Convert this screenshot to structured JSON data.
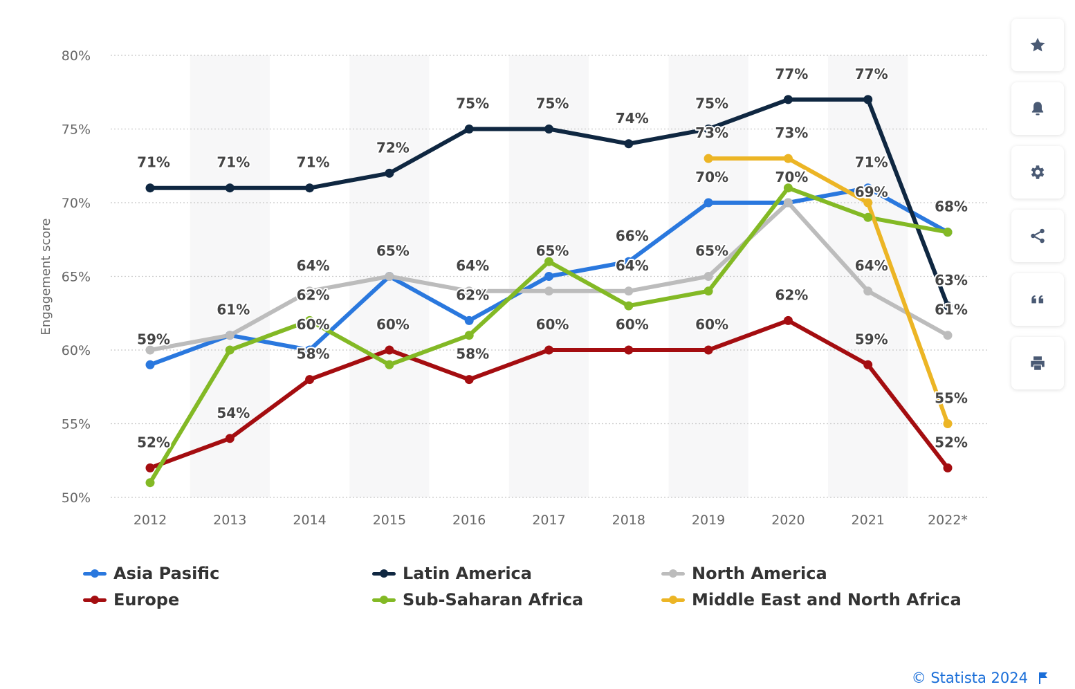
{
  "chart_data": {
    "type": "line",
    "title": "",
    "xlabel": "",
    "ylabel": "Engagement score",
    "categories": [
      "2012",
      "2013",
      "2014",
      "2015",
      "2016",
      "2017",
      "2018",
      "2019",
      "2020",
      "2021",
      "2022*"
    ],
    "ylim": [
      50,
      80
    ],
    "yticks": [
      50,
      55,
      60,
      65,
      70,
      75,
      80
    ],
    "ytick_labels": [
      "50%",
      "55%",
      "60%",
      "65%",
      "70%",
      "75%",
      "80%"
    ],
    "value_suffix": "%",
    "grid": true,
    "legend_position": "bottom",
    "series": [
      {
        "name": "Asia Pasific",
        "color": "#2a78de",
        "values": [
          59,
          61,
          60,
          65,
          62,
          65,
          66,
          70,
          70,
          71,
          68
        ]
      },
      {
        "name": "Latin America",
        "color": "#0f2741",
        "values": [
          71,
          71,
          71,
          72,
          75,
          75,
          74,
          75,
          77,
          77,
          63
        ]
      },
      {
        "name": "North America",
        "color": "#bcbcbc",
        "values": [
          60,
          61,
          64,
          65,
          64,
          64,
          64,
          65,
          70,
          64,
          61
        ]
      },
      {
        "name": "Europe",
        "color": "#a40d10",
        "values": [
          52,
          54,
          58,
          60,
          58,
          60,
          60,
          60,
          62,
          59,
          52
        ]
      },
      {
        "name": "Sub-Saharan Africa",
        "color": "#83b925",
        "values": [
          51,
          60,
          62,
          59,
          61,
          66,
          63,
          64,
          71,
          69,
          68
        ]
      },
      {
        "name": "Middle East and North Africa",
        "color": "#ecb525",
        "values": [
          null,
          null,
          null,
          null,
          null,
          null,
          null,
          73,
          73,
          70,
          55
        ]
      }
    ],
    "data_labels": [
      {
        "text": "71%",
        "x": "2012",
        "y": 71
      },
      {
        "text": "71%",
        "x": "2013",
        "y": 71
      },
      {
        "text": "71%",
        "x": "2014",
        "y": 71
      },
      {
        "text": "72%",
        "x": "2015",
        "y": 72
      },
      {
        "text": "75%",
        "x": "2016",
        "y": 75
      },
      {
        "text": "75%",
        "x": "2017",
        "y": 75
      },
      {
        "text": "74%",
        "x": "2018",
        "y": 74
      },
      {
        "text": "75%",
        "x": "2019",
        "y": 75
      },
      {
        "text": "77%",
        "x": "2020",
        "y": 77
      },
      {
        "text": "77%",
        "x": "2021",
        "y": 77
      },
      {
        "text": "73%",
        "x": "2019",
        "y": 73
      },
      {
        "text": "73%",
        "x": "2020",
        "y": 73
      },
      {
        "text": "71%",
        "x": "2021",
        "y": 71
      },
      {
        "text": "70%",
        "x": "2019",
        "y": 70
      },
      {
        "text": "70%",
        "x": "2020",
        "y": 70
      },
      {
        "text": "69%",
        "x": "2021",
        "y": 69
      },
      {
        "text": "68%",
        "x": "2022*",
        "y": 68
      },
      {
        "text": "66%",
        "x": "2018",
        "y": 66
      },
      {
        "text": "65%",
        "x": "2015",
        "y": 65
      },
      {
        "text": "65%",
        "x": "2017",
        "y": 65
      },
      {
        "text": "65%",
        "x": "2019",
        "y": 65
      },
      {
        "text": "64%",
        "x": "2014",
        "y": 64
      },
      {
        "text": "64%",
        "x": "2016",
        "y": 64
      },
      {
        "text": "64%",
        "x": "2018",
        "y": 64
      },
      {
        "text": "64%",
        "x": "2021",
        "y": 64
      },
      {
        "text": "63%",
        "x": "2022*",
        "y": 63
      },
      {
        "text": "62%",
        "x": "2014",
        "y": 62
      },
      {
        "text": "62%",
        "x": "2016",
        "y": 62
      },
      {
        "text": "62%",
        "x": "2020",
        "y": 62
      },
      {
        "text": "61%",
        "x": "2013",
        "y": 61
      },
      {
        "text": "61%",
        "x": "2022*",
        "y": 61
      },
      {
        "text": "60%",
        "x": "2014",
        "y": 60
      },
      {
        "text": "60%",
        "x": "2015",
        "y": 60
      },
      {
        "text": "60%",
        "x": "2017",
        "y": 60
      },
      {
        "text": "60%",
        "x": "2018",
        "y": 60
      },
      {
        "text": "60%",
        "x": "2019",
        "y": 60
      },
      {
        "text": "59%",
        "x": "2012",
        "y": 59
      },
      {
        "text": "59%",
        "x": "2021",
        "y": 59
      },
      {
        "text": "58%",
        "x": "2014",
        "y": 58
      },
      {
        "text": "58%",
        "x": "2016",
        "y": 58
      },
      {
        "text": "55%",
        "x": "2022*",
        "y": 55
      },
      {
        "text": "54%",
        "x": "2013",
        "y": 54
      },
      {
        "text": "52%",
        "x": "2012",
        "y": 52
      },
      {
        "text": "52%",
        "x": "2022*",
        "y": 52
      }
    ]
  },
  "toolbar": {
    "buttons": [
      {
        "name": "favorite",
        "icon": "star-icon"
      },
      {
        "name": "notification",
        "icon": "bell-icon"
      },
      {
        "name": "settings",
        "icon": "gear-icon"
      },
      {
        "name": "share",
        "icon": "share-icon"
      },
      {
        "name": "cite",
        "icon": "quote-icon"
      },
      {
        "name": "print",
        "icon": "print-icon"
      }
    ],
    "icon_color": "#4a5a74"
  },
  "credit": {
    "text": "© Statista 2024",
    "icon": "flag-icon",
    "color": "#1a6ed8"
  }
}
